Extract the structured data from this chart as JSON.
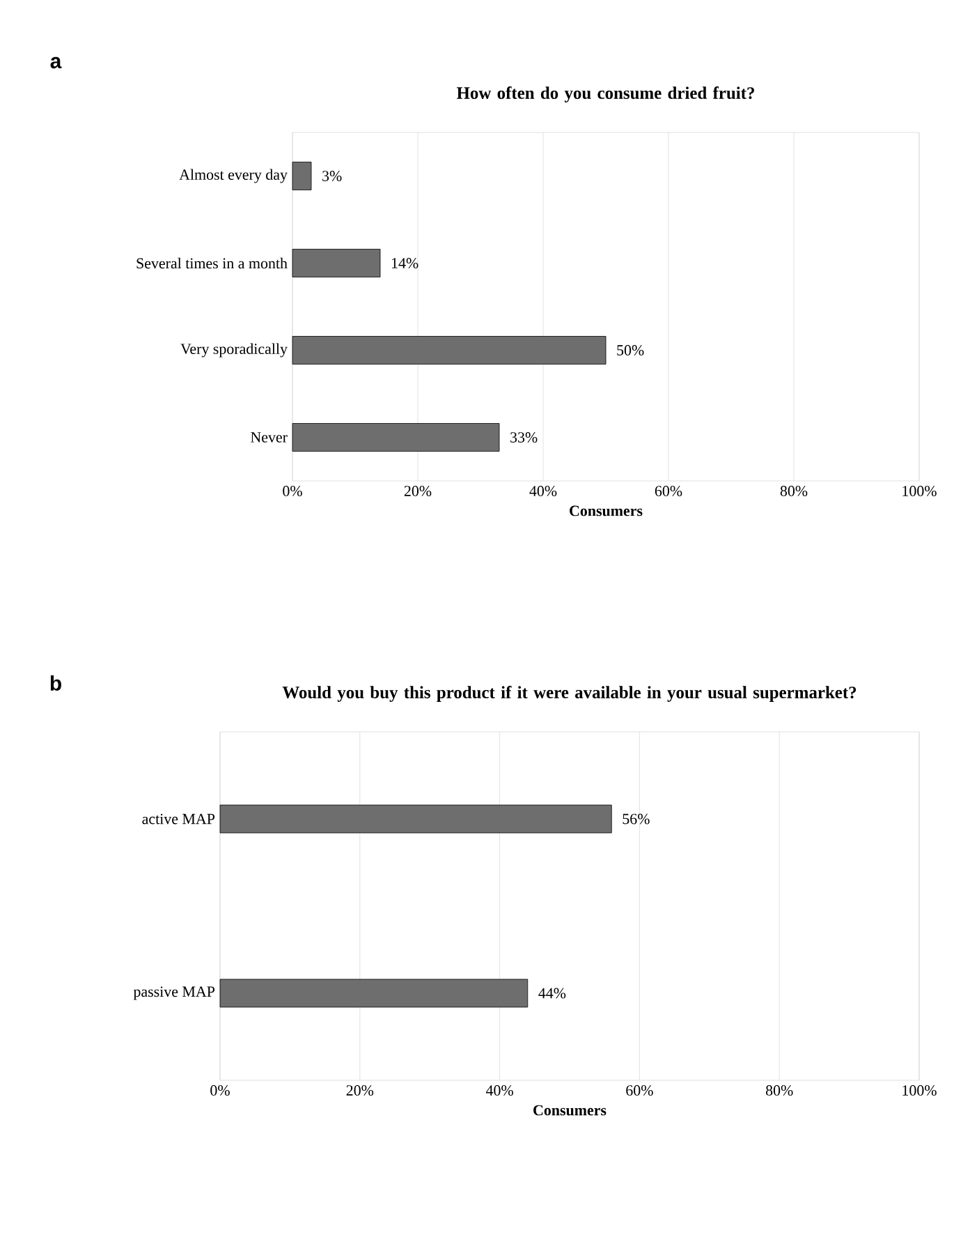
{
  "chart_data": [
    {
      "type": "bar",
      "orientation": "horizontal",
      "title": "How often do you consume dried fruit?",
      "xlabel": "Consumers",
      "categories": [
        "Almost every day",
        "Several times in a month",
        "Very sporadically",
        "Never"
      ],
      "values": [
        3,
        14,
        50,
        33
      ],
      "value_labels": [
        "3%",
        "14%",
        "50%",
        "33%"
      ],
      "color": "#6e6e6e",
      "xlim": [
        0,
        100
      ],
      "xticks": [
        {
          "value": 0,
          "label": "0%"
        },
        {
          "value": 20,
          "label": "20%"
        },
        {
          "value": 40,
          "label": "40%"
        },
        {
          "value": 60,
          "label": "60%"
        },
        {
          "value": 80,
          "label": "80%"
        },
        {
          "value": 100,
          "label": "100%"
        }
      ],
      "grid": "x",
      "annotations": [
        "a"
      ]
    },
    {
      "type": "bar",
      "orientation": "horizontal",
      "title": "Would you buy this product if it were available in your usual supermarket?",
      "xlabel": "Consumers",
      "categories": [
        "active MAP",
        "passive MAP"
      ],
      "values": [
        56,
        44
      ],
      "value_labels": [
        "56%",
        "44%"
      ],
      "color": "#6e6e6e",
      "xlim": [
        0,
        100
      ],
      "xticks": [
        {
          "value": 0,
          "label": "0%"
        },
        {
          "value": 20,
          "label": "20%"
        },
        {
          "value": 40,
          "label": "40%"
        },
        {
          "value": 60,
          "label": "60%"
        },
        {
          "value": 80,
          "label": "80%"
        },
        {
          "value": 100,
          "label": "100%"
        }
      ],
      "grid": "x",
      "annotations": [
        "b"
      ]
    }
  ]
}
